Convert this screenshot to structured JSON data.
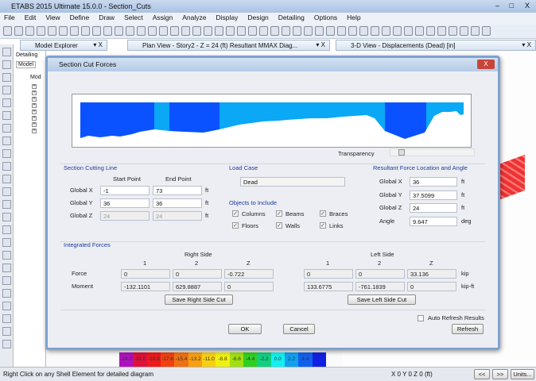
{
  "window": {
    "title": "ETABS 2015 Ultimate 15.0.0 - Section_Cuts",
    "min": "–",
    "max": "□",
    "close": "X"
  },
  "menu": [
    "File",
    "Edit",
    "View",
    "Define",
    "Draw",
    "Select",
    "Assign",
    "Analyze",
    "Display",
    "Design",
    "Detailing",
    "Options",
    "Help"
  ],
  "toolbar": {
    "label_3d": "3-d",
    "label_nd": "nd"
  },
  "panes": [
    {
      "title": "Model Explorer",
      "close": "▾ X"
    },
    {
      "title": "Plan View - Story2 - Z = 24 (ft)   Resultant MMAX Diag...",
      "close": "▾ X"
    },
    {
      "title": "3-D View  - Displacements (Dead)  [in]",
      "close": "▾ X"
    }
  ],
  "explorer": {
    "tab_detailing": "Detailing",
    "tab_model": "Model",
    "root": "Mod"
  },
  "dialog": {
    "title": "Section Cut Forces",
    "close": "X",
    "transparency_label": "Transparency",
    "diagram_colors": {
      "dark": "#0a52ff",
      "light": "#0aa8f5"
    },
    "cutting_line": {
      "title": "Section Cutting Line",
      "start_header": "Start Point",
      "end_header": "End Point",
      "rows": [
        {
          "label": "Global  X",
          "start": "-1",
          "end": "73",
          "unit": "ft"
        },
        {
          "label": "Global  Y",
          "start": "36",
          "end": "36",
          "unit": "ft"
        },
        {
          "label": "Global  Z",
          "start": "24",
          "end": "24",
          "unit": "ft"
        }
      ]
    },
    "load_case": {
      "title": "Load Case",
      "value": "Dead"
    },
    "objects": {
      "title": "Objects to Include",
      "items": [
        {
          "label": "Columns",
          "checked": true
        },
        {
          "label": "Beams",
          "checked": true
        },
        {
          "label": "Braces",
          "checked": true
        },
        {
          "label": "Floors",
          "checked": true
        },
        {
          "label": "Walls",
          "checked": true
        },
        {
          "label": "Links",
          "checked": true
        }
      ]
    },
    "resultant": {
      "title": "Resultant Force Location and Angle",
      "rows": [
        {
          "label": "Global  X",
          "value": "36",
          "unit": "ft"
        },
        {
          "label": "Global  Y",
          "value": "37.5099",
          "unit": "ft"
        },
        {
          "label": "Global  Z",
          "value": "24",
          "unit": "ft"
        },
        {
          "label": "Angle",
          "value": "9.647",
          "unit": "deg"
        }
      ]
    },
    "integrated": {
      "title": "Integrated Forces",
      "right_title": "Right Side",
      "left_title": "Left Side",
      "cols": [
        "1",
        "2",
        "Z"
      ],
      "force_label": "Force",
      "moment_label": "Moment",
      "right": {
        "force": [
          "0",
          "0",
          "-0.722"
        ],
        "moment": [
          "-132.1101",
          "629.8887",
          "0"
        ]
      },
      "left": {
        "force": [
          "0",
          "0",
          "33.136"
        ],
        "moment": [
          "133.6775",
          "-761.1839",
          "0"
        ]
      },
      "force_unit": "kip",
      "moment_unit": "kip-ft",
      "save_right": "Save Right Side Cut",
      "save_left": "Save Left Side Cut"
    },
    "auto_refresh": {
      "label": "Auto Refresh Results",
      "checked": false
    },
    "ok": "OK",
    "cancel": "Cancel",
    "refresh": "Refresh"
  },
  "colorbar": {
    "labels": [
      "-24.2",
      "-22.0",
      "-19.8",
      "-17.6",
      "-15.4",
      "-13.2",
      "-11.0",
      "-8.8",
      "-6.6",
      "-4.4",
      "-2.2",
      "0.0",
      "2.2",
      "4.4"
    ],
    "colors": [
      "#b010c0",
      "#e0103a",
      "#f01818",
      "#f04010",
      "#f07010",
      "#f8a010",
      "#f8d010",
      "#f0f010",
      "#a0e010",
      "#30d020",
      "#10d080",
      "#10f0f0",
      "#10a0f0",
      "#1060f0",
      "#1020e0"
    ]
  },
  "status": {
    "message": "Right Click on any Shell Element for detailed diagram",
    "coords": "X 0  Y 0  Z 0 (ft)",
    "prev": "<<",
    "next": ">>",
    "units": "Units..."
  }
}
